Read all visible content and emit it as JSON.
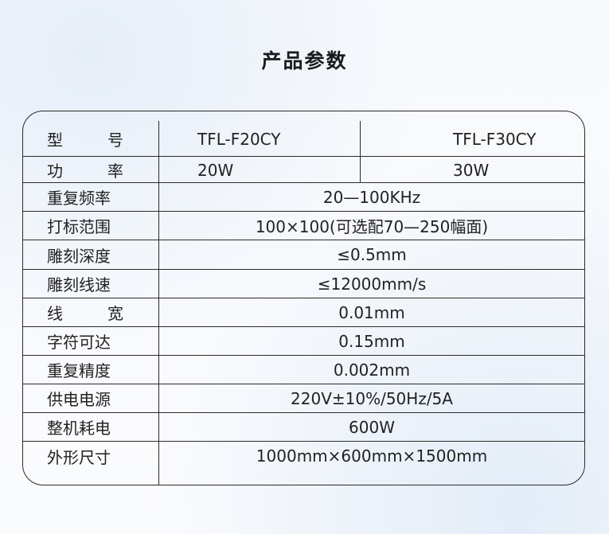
{
  "title": "产品参数",
  "header": {
    "label": [
      "型",
      "号"
    ],
    "models": [
      "TFL-F20CY",
      "TFL-F30CY"
    ]
  },
  "power": {
    "label": [
      "功",
      "率"
    ],
    "values": [
      "20W",
      "30W"
    ]
  },
  "rows": [
    {
      "label": "重复频率",
      "value": "20—100KHz"
    },
    {
      "label": "打标范围",
      "value": "100×100(可选配70—250幅面)"
    },
    {
      "label": "雕刻深度",
      "value": "≤0.5mm"
    },
    {
      "label": "雕刻线速",
      "value": "≤12000mm/s"
    },
    {
      "label": "线宽",
      "label_chars": [
        "线",
        "宽"
      ],
      "value": "0.01mm"
    },
    {
      "label": "字符可达",
      "value": "0.15mm"
    },
    {
      "label": "重复精度",
      "value": "0.002mm"
    },
    {
      "label": "供电电源",
      "value": "220V±10%/50Hz/5A"
    },
    {
      "label": "整机耗电",
      "value": "600W"
    },
    {
      "label": "外形尺寸",
      "value": "1000mm×600mm×1500mm"
    }
  ]
}
